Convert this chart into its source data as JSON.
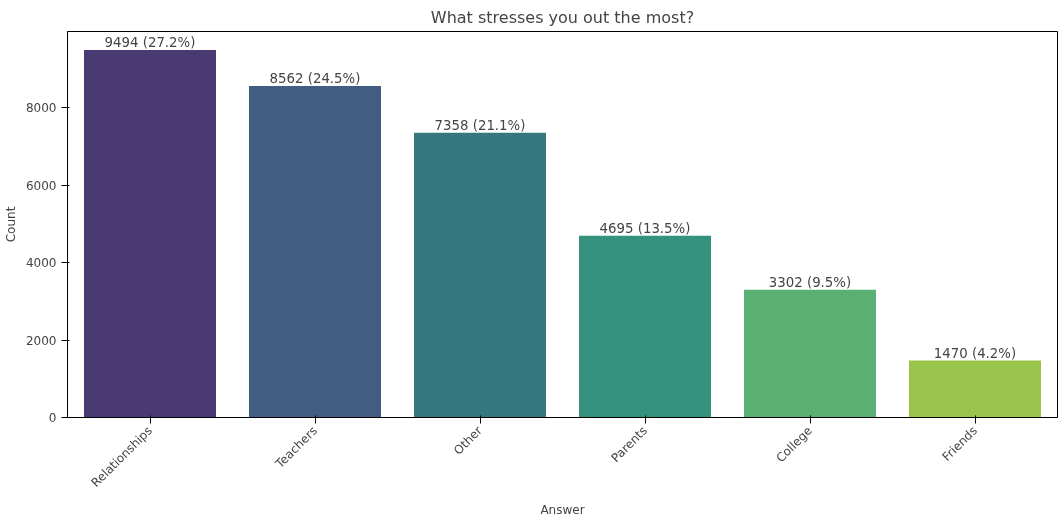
{
  "chart_data": {
    "type": "bar",
    "title": "What stresses you out the most?",
    "xlabel": "Answer",
    "ylabel": "Count",
    "categories": [
      "Relationships",
      "Teachers",
      "Other",
      "Parents",
      "College",
      "Friends"
    ],
    "values": [
      9494,
      8562,
      7358,
      4695,
      3302,
      1470
    ],
    "colors": [
      "#4a3a74",
      "#415e82",
      "#35767f",
      "#33917d",
      "#5ab072",
      "#9ac54d"
    ],
    "value_labels": [
      "9494 (27.2%)",
      "8562 (24.5%)",
      "7358 (21.1%)",
      "4695 (13.5%)",
      "3302 (9.5%)",
      "1470 (4.2%)"
    ],
    "ylim": [
      0,
      9970
    ],
    "yticks": [
      0,
      2000,
      4000,
      6000,
      8000
    ],
    "grid": false
  }
}
